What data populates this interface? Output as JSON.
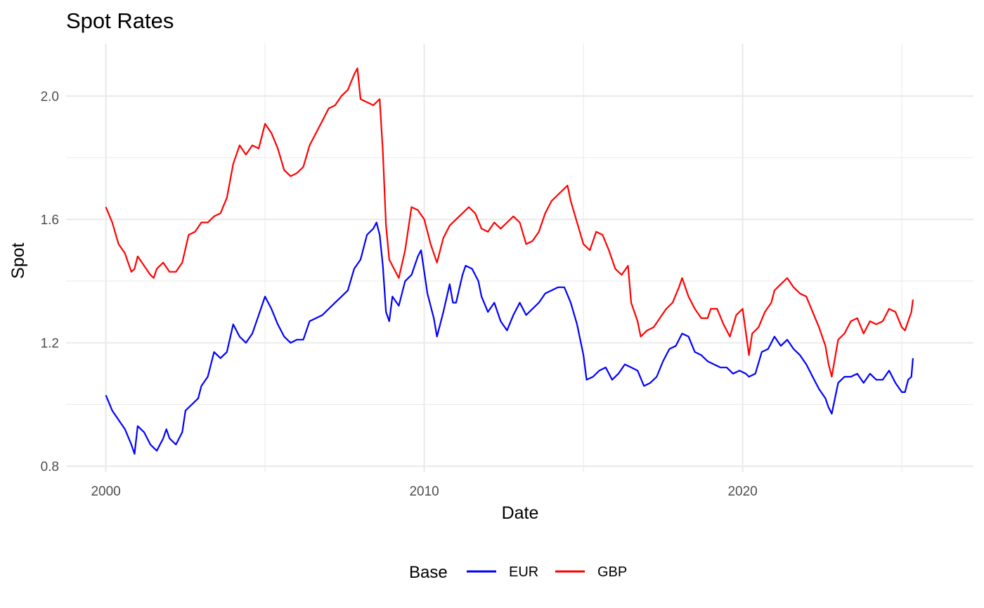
{
  "chart_data": {
    "type": "line",
    "title": "Spot Rates",
    "xlabel": "Date",
    "ylabel": "Spot",
    "x_ticks": [
      "2000",
      "2010",
      "2020"
    ],
    "y_ticks": [
      "0.8",
      "1.2",
      "1.6",
      "2.0"
    ],
    "xlim": [
      1998.75,
      2027.25
    ],
    "ylim": [
      0.78,
      2.17
    ],
    "grid": true,
    "legend": {
      "title": "Base",
      "position": "bottom"
    },
    "series": [
      {
        "name": "EUR",
        "color": "#0000ff",
        "points": [
          [
            2000.0,
            1.03
          ],
          [
            2000.2,
            0.98
          ],
          [
            2000.4,
            0.95
          ],
          [
            2000.6,
            0.92
          ],
          [
            2000.8,
            0.87
          ],
          [
            2000.9,
            0.84
          ],
          [
            2001.0,
            0.93
          ],
          [
            2001.2,
            0.91
          ],
          [
            2001.4,
            0.87
          ],
          [
            2001.6,
            0.85
          ],
          [
            2001.8,
            0.89
          ],
          [
            2001.9,
            0.92
          ],
          [
            2002.0,
            0.89
          ],
          [
            2002.2,
            0.87
          ],
          [
            2002.4,
            0.91
          ],
          [
            2002.5,
            0.98
          ],
          [
            2002.7,
            1.0
          ],
          [
            2002.9,
            1.02
          ],
          [
            2003.0,
            1.06
          ],
          [
            2003.2,
            1.09
          ],
          [
            2003.4,
            1.17
          ],
          [
            2003.6,
            1.15
          ],
          [
            2003.8,
            1.17
          ],
          [
            2004.0,
            1.26
          ],
          [
            2004.2,
            1.22
          ],
          [
            2004.4,
            1.2
          ],
          [
            2004.6,
            1.23
          ],
          [
            2004.8,
            1.29
          ],
          [
            2005.0,
            1.35
          ],
          [
            2005.2,
            1.31
          ],
          [
            2005.4,
            1.26
          ],
          [
            2005.6,
            1.22
          ],
          [
            2005.8,
            1.2
          ],
          [
            2006.0,
            1.21
          ],
          [
            2006.2,
            1.21
          ],
          [
            2006.4,
            1.27
          ],
          [
            2006.6,
            1.28
          ],
          [
            2006.8,
            1.29
          ],
          [
            2007.0,
            1.31
          ],
          [
            2007.2,
            1.33
          ],
          [
            2007.4,
            1.35
          ],
          [
            2007.6,
            1.37
          ],
          [
            2007.8,
            1.44
          ],
          [
            2008.0,
            1.47
          ],
          [
            2008.2,
            1.55
          ],
          [
            2008.4,
            1.57
          ],
          [
            2008.5,
            1.59
          ],
          [
            2008.6,
            1.55
          ],
          [
            2008.7,
            1.45
          ],
          [
            2008.8,
            1.3
          ],
          [
            2008.9,
            1.27
          ],
          [
            2009.0,
            1.35
          ],
          [
            2009.2,
            1.32
          ],
          [
            2009.4,
            1.4
          ],
          [
            2009.6,
            1.42
          ],
          [
            2009.8,
            1.48
          ],
          [
            2009.9,
            1.5
          ],
          [
            2010.1,
            1.36
          ],
          [
            2010.3,
            1.28
          ],
          [
            2010.4,
            1.22
          ],
          [
            2010.6,
            1.3
          ],
          [
            2010.8,
            1.39
          ],
          [
            2010.9,
            1.33
          ],
          [
            2011.0,
            1.33
          ],
          [
            2011.2,
            1.42
          ],
          [
            2011.3,
            1.45
          ],
          [
            2011.5,
            1.44
          ],
          [
            2011.7,
            1.4
          ],
          [
            2011.8,
            1.35
          ],
          [
            2012.0,
            1.3
          ],
          [
            2012.2,
            1.33
          ],
          [
            2012.4,
            1.27
          ],
          [
            2012.6,
            1.24
          ],
          [
            2012.8,
            1.29
          ],
          [
            2013.0,
            1.33
          ],
          [
            2013.2,
            1.29
          ],
          [
            2013.4,
            1.31
          ],
          [
            2013.6,
            1.33
          ],
          [
            2013.8,
            1.36
          ],
          [
            2014.0,
            1.37
          ],
          [
            2014.2,
            1.38
          ],
          [
            2014.4,
            1.38
          ],
          [
            2014.6,
            1.33
          ],
          [
            2014.8,
            1.26
          ],
          [
            2015.0,
            1.16
          ],
          [
            2015.1,
            1.08
          ],
          [
            2015.3,
            1.09
          ],
          [
            2015.5,
            1.11
          ],
          [
            2015.7,
            1.12
          ],
          [
            2015.9,
            1.08
          ],
          [
            2016.1,
            1.1
          ],
          [
            2016.3,
            1.13
          ],
          [
            2016.5,
            1.12
          ],
          [
            2016.7,
            1.11
          ],
          [
            2016.9,
            1.06
          ],
          [
            2017.1,
            1.07
          ],
          [
            2017.3,
            1.09
          ],
          [
            2017.5,
            1.14
          ],
          [
            2017.7,
            1.18
          ],
          [
            2017.9,
            1.19
          ],
          [
            2018.1,
            1.23
          ],
          [
            2018.3,
            1.22
          ],
          [
            2018.5,
            1.17
          ],
          [
            2018.7,
            1.16
          ],
          [
            2018.9,
            1.14
          ],
          [
            2019.1,
            1.13
          ],
          [
            2019.3,
            1.12
          ],
          [
            2019.5,
            1.12
          ],
          [
            2019.7,
            1.1
          ],
          [
            2019.9,
            1.11
          ],
          [
            2020.1,
            1.1
          ],
          [
            2020.2,
            1.09
          ],
          [
            2020.4,
            1.1
          ],
          [
            2020.6,
            1.17
          ],
          [
            2020.8,
            1.18
          ],
          [
            2021.0,
            1.22
          ],
          [
            2021.2,
            1.19
          ],
          [
            2021.4,
            1.21
          ],
          [
            2021.6,
            1.18
          ],
          [
            2021.8,
            1.16
          ],
          [
            2022.0,
            1.13
          ],
          [
            2022.2,
            1.09
          ],
          [
            2022.4,
            1.05
          ],
          [
            2022.6,
            1.02
          ],
          [
            2022.7,
            0.99
          ],
          [
            2022.8,
            0.97
          ],
          [
            2023.0,
            1.07
          ],
          [
            2023.2,
            1.09
          ],
          [
            2023.4,
            1.09
          ],
          [
            2023.6,
            1.1
          ],
          [
            2023.8,
            1.07
          ],
          [
            2024.0,
            1.1
          ],
          [
            2024.2,
            1.08
          ],
          [
            2024.4,
            1.08
          ],
          [
            2024.6,
            1.11
          ],
          [
            2024.8,
            1.07
          ],
          [
            2025.0,
            1.04
          ],
          [
            2025.1,
            1.04
          ],
          [
            2025.2,
            1.08
          ],
          [
            2025.3,
            1.09
          ],
          [
            2025.35,
            1.15
          ]
        ]
      },
      {
        "name": "GBP",
        "color": "#ff0000",
        "points": [
          [
            2000.0,
            1.64
          ],
          [
            2000.2,
            1.59
          ],
          [
            2000.4,
            1.52
          ],
          [
            2000.6,
            1.49
          ],
          [
            2000.7,
            1.46
          ],
          [
            2000.8,
            1.43
          ],
          [
            2000.9,
            1.44
          ],
          [
            2001.0,
            1.48
          ],
          [
            2001.2,
            1.45
          ],
          [
            2001.4,
            1.42
          ],
          [
            2001.5,
            1.41
          ],
          [
            2001.6,
            1.44
          ],
          [
            2001.8,
            1.46
          ],
          [
            2002.0,
            1.43
          ],
          [
            2002.2,
            1.43
          ],
          [
            2002.4,
            1.46
          ],
          [
            2002.6,
            1.55
          ],
          [
            2002.8,
            1.56
          ],
          [
            2003.0,
            1.59
          ],
          [
            2003.2,
            1.59
          ],
          [
            2003.4,
            1.61
          ],
          [
            2003.6,
            1.62
          ],
          [
            2003.8,
            1.67
          ],
          [
            2004.0,
            1.78
          ],
          [
            2004.2,
            1.84
          ],
          [
            2004.4,
            1.81
          ],
          [
            2004.6,
            1.84
          ],
          [
            2004.8,
            1.83
          ],
          [
            2005.0,
            1.91
          ],
          [
            2005.2,
            1.88
          ],
          [
            2005.4,
            1.83
          ],
          [
            2005.6,
            1.76
          ],
          [
            2005.8,
            1.74
          ],
          [
            2006.0,
            1.75
          ],
          [
            2006.2,
            1.77
          ],
          [
            2006.4,
            1.84
          ],
          [
            2006.6,
            1.88
          ],
          [
            2006.8,
            1.92
          ],
          [
            2007.0,
            1.96
          ],
          [
            2007.2,
            1.97
          ],
          [
            2007.4,
            2.0
          ],
          [
            2007.6,
            2.02
          ],
          [
            2007.8,
            2.07
          ],
          [
            2007.9,
            2.09
          ],
          [
            2008.0,
            1.99
          ],
          [
            2008.2,
            1.98
          ],
          [
            2008.4,
            1.97
          ],
          [
            2008.6,
            1.99
          ],
          [
            2008.7,
            1.82
          ],
          [
            2008.8,
            1.58
          ],
          [
            2008.9,
            1.47
          ],
          [
            2009.0,
            1.45
          ],
          [
            2009.2,
            1.41
          ],
          [
            2009.4,
            1.5
          ],
          [
            2009.6,
            1.64
          ],
          [
            2009.8,
            1.63
          ],
          [
            2010.0,
            1.6
          ],
          [
            2010.2,
            1.52
          ],
          [
            2010.4,
            1.46
          ],
          [
            2010.6,
            1.54
          ],
          [
            2010.8,
            1.58
          ],
          [
            2011.0,
            1.6
          ],
          [
            2011.2,
            1.62
          ],
          [
            2011.4,
            1.64
          ],
          [
            2011.6,
            1.62
          ],
          [
            2011.8,
            1.57
          ],
          [
            2012.0,
            1.56
          ],
          [
            2012.2,
            1.59
          ],
          [
            2012.4,
            1.57
          ],
          [
            2012.6,
            1.59
          ],
          [
            2012.8,
            1.61
          ],
          [
            2013.0,
            1.59
          ],
          [
            2013.2,
            1.52
          ],
          [
            2013.4,
            1.53
          ],
          [
            2013.6,
            1.56
          ],
          [
            2013.8,
            1.62
          ],
          [
            2014.0,
            1.66
          ],
          [
            2014.2,
            1.68
          ],
          [
            2014.4,
            1.7
          ],
          [
            2014.5,
            1.71
          ],
          [
            2014.6,
            1.66
          ],
          [
            2014.8,
            1.59
          ],
          [
            2015.0,
            1.52
          ],
          [
            2015.2,
            1.5
          ],
          [
            2015.4,
            1.56
          ],
          [
            2015.6,
            1.55
          ],
          [
            2015.8,
            1.5
          ],
          [
            2016.0,
            1.44
          ],
          [
            2016.2,
            1.42
          ],
          [
            2016.4,
            1.45
          ],
          [
            2016.5,
            1.33
          ],
          [
            2016.7,
            1.27
          ],
          [
            2016.8,
            1.22
          ],
          [
            2017.0,
            1.24
          ],
          [
            2017.2,
            1.25
          ],
          [
            2017.4,
            1.28
          ],
          [
            2017.6,
            1.31
          ],
          [
            2017.8,
            1.33
          ],
          [
            2018.0,
            1.38
          ],
          [
            2018.1,
            1.41
          ],
          [
            2018.3,
            1.35
          ],
          [
            2018.5,
            1.31
          ],
          [
            2018.7,
            1.28
          ],
          [
            2018.9,
            1.28
          ],
          [
            2019.0,
            1.31
          ],
          [
            2019.2,
            1.31
          ],
          [
            2019.4,
            1.26
          ],
          [
            2019.6,
            1.22
          ],
          [
            2019.8,
            1.29
          ],
          [
            2020.0,
            1.31
          ],
          [
            2020.2,
            1.16
          ],
          [
            2020.3,
            1.23
          ],
          [
            2020.5,
            1.25
          ],
          [
            2020.7,
            1.3
          ],
          [
            2020.9,
            1.33
          ],
          [
            2021.0,
            1.37
          ],
          [
            2021.2,
            1.39
          ],
          [
            2021.4,
            1.41
          ],
          [
            2021.6,
            1.38
          ],
          [
            2021.8,
            1.36
          ],
          [
            2022.0,
            1.35
          ],
          [
            2022.2,
            1.3
          ],
          [
            2022.4,
            1.25
          ],
          [
            2022.6,
            1.19
          ],
          [
            2022.7,
            1.13
          ],
          [
            2022.8,
            1.09
          ],
          [
            2023.0,
            1.21
          ],
          [
            2023.2,
            1.23
          ],
          [
            2023.4,
            1.27
          ],
          [
            2023.6,
            1.28
          ],
          [
            2023.8,
            1.23
          ],
          [
            2024.0,
            1.27
          ],
          [
            2024.2,
            1.26
          ],
          [
            2024.4,
            1.27
          ],
          [
            2024.6,
            1.31
          ],
          [
            2024.8,
            1.3
          ],
          [
            2025.0,
            1.25
          ],
          [
            2025.1,
            1.24
          ],
          [
            2025.2,
            1.27
          ],
          [
            2025.3,
            1.3
          ],
          [
            2025.35,
            1.34
          ]
        ]
      }
    ]
  }
}
